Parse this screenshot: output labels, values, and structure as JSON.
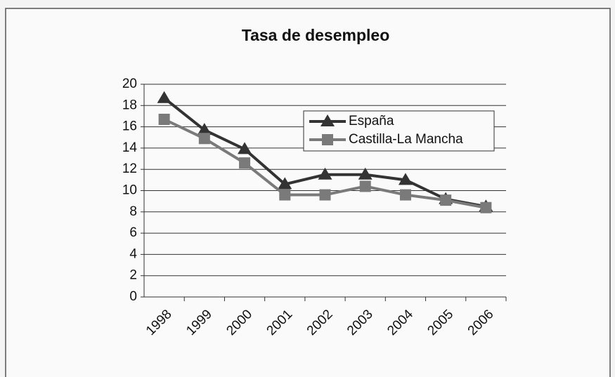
{
  "chart_data": {
    "type": "line",
    "title": "Tasa de desempleo",
    "categories": [
      "1998",
      "1999",
      "2000",
      "2001",
      "2002",
      "2003",
      "2004",
      "2005",
      "2006"
    ],
    "series": [
      {
        "name": "España",
        "color": "#333333",
        "marker": "triangle",
        "values": [
          18.7,
          15.7,
          13.9,
          10.6,
          11.5,
          11.5,
          11.0,
          9.2,
          8.5
        ]
      },
      {
        "name": "Castilla-La Mancha",
        "color": "#7a7a7a",
        "marker": "square",
        "values": [
          16.7,
          14.9,
          12.6,
          9.6,
          9.6,
          10.4,
          9.6,
          9.1,
          8.4
        ]
      }
    ],
    "ylim": [
      0,
      20
    ],
    "yticks": [
      0,
      2,
      4,
      6,
      8,
      10,
      12,
      14,
      16,
      18,
      20
    ],
    "grid": true,
    "legend": "top-right"
  }
}
